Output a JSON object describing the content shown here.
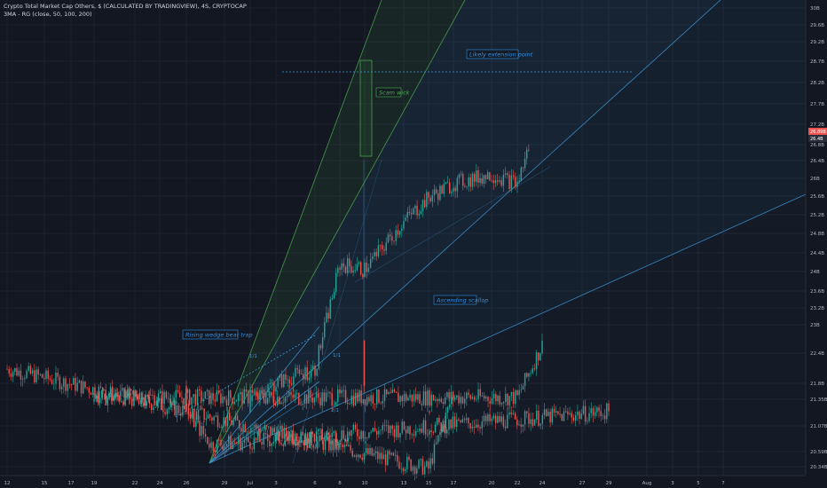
{
  "header": {
    "title": "Crypto Total Market Cap Others, $ (CALCULATED BY TRADINGVIEW), 4S, CRYPTOCAP",
    "indicator": "3MA - RG (close, 50, 100, 200)"
  },
  "price_tags": {
    "last": "26.89B",
    "sub": "26.4B"
  },
  "colors": {
    "background": "#131722",
    "up": "#26a69a",
    "down": "#ef5350",
    "fan": "#3d9ad9",
    "annotation": "#2f8fe0"
  },
  "chart_data": {
    "type": "candlestick",
    "title": "",
    "xlabel": "",
    "ylabel": "",
    "x_ticks": [
      "12",
      "15",
      "17",
      "19",
      "22",
      "24",
      "26",
      "29",
      "Jul",
      "3",
      "6",
      "8",
      "10",
      "13",
      "15",
      "17",
      "20",
      "22",
      "24",
      "27",
      "29",
      "Aug",
      "3",
      "5",
      "7"
    ],
    "y_ticks": [
      "30B",
      "29.6B",
      "29.2B",
      "28.7B",
      "28.2B",
      "27.7B",
      "27.2B",
      "26.8B",
      "26.4B",
      "26B",
      "25.6B",
      "25.2B",
      "24.8B",
      "24.4B",
      "24B",
      "23.6B",
      "23.2B",
      "23B",
      "22.4B",
      "21.8B",
      "21.35B",
      "21.07B",
      "20.59B",
      "20.34B"
    ],
    "ylim": [
      20.3,
      30.2
    ],
    "approx_close_path": [
      {
        "x": "12",
        "y": 22.4
      },
      {
        "x": "15",
        "y": 20.3
      },
      {
        "x": "17",
        "y": 21.9
      },
      {
        "x": "19",
        "y": 21.8
      },
      {
        "x": "22",
        "y": 21.8
      },
      {
        "x": "24",
        "y": 22.9
      },
      {
        "x": "26",
        "y": 21.5
      },
      {
        "x": "28",
        "y": 20.8
      },
      {
        "x": "29",
        "y": 21.5
      },
      {
        "x": "Jul",
        "y": 21.8
      },
      {
        "x": "3",
        "y": 22.1
      },
      {
        "x": "6",
        "y": 22.4
      },
      {
        "x": "8",
        "y": 24.6
      },
      {
        "x": "10",
        "y": 24.5
      },
      {
        "x": "13",
        "y": 25.5
      },
      {
        "x": "15",
        "y": 26.0
      },
      {
        "x": "17",
        "y": 26.3
      },
      {
        "x": "20",
        "y": 26.5
      },
      {
        "x": "22",
        "y": 26.3
      },
      {
        "x": "23",
        "y": 27.2
      }
    ],
    "annotations": [
      {
        "text": "Rising wedge bear trap"
      },
      {
        "text": "Scam wick"
      },
      {
        "text": "Likely extension point"
      },
      {
        "text": "Ascending scallop"
      },
      {
        "text": "1/1"
      },
      {
        "text": "1/1"
      },
      {
        "text": "2/1"
      }
    ],
    "grid": true,
    "legend": "none"
  }
}
